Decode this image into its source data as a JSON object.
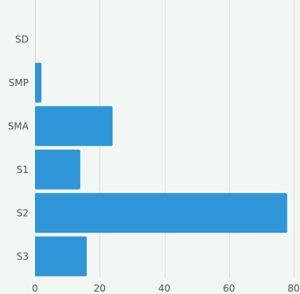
{
  "chart_data": {
    "type": "bar",
    "orientation": "horizontal",
    "categories": [
      "SD",
      "SMP",
      "SMA",
      "S1",
      "S2",
      "S3"
    ],
    "series": [
      {
        "values": [
          0,
          2,
          24,
          14,
          78,
          16
        ]
      }
    ],
    "xlim": [
      0,
      80
    ],
    "xticks": [
      0,
      20,
      40,
      60,
      80
    ],
    "title": "",
    "xlabel": "",
    "ylabel": "",
    "grid": "vertical",
    "legend": "none",
    "bar_color": "#2f96d8",
    "background_color": "#f3f7f4"
  }
}
